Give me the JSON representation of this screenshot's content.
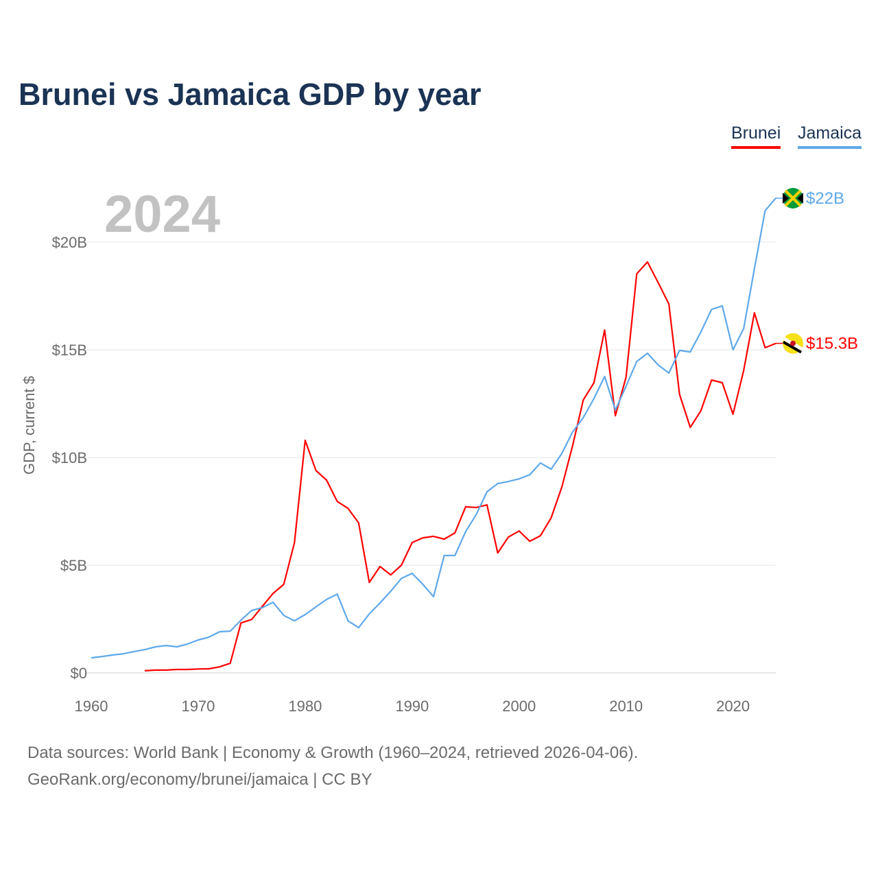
{
  "chart_data": {
    "type": "line",
    "title": "Brunei vs Jamaica GDP by year",
    "ylabel": "GDP, current $",
    "xlabel": "",
    "year_label": "2024",
    "xlim": [
      1960,
      2024
    ],
    "ylim": [
      0,
      20
    ],
    "x_ticks": [
      "1960",
      "1970",
      "1980",
      "1990",
      "2000",
      "2010",
      "2020"
    ],
    "y_ticks": [
      {
        "value": 0,
        "label": "$0"
      },
      {
        "value": 5,
        "label": "$5B"
      },
      {
        "value": 10,
        "label": "$10B"
      },
      {
        "value": 15,
        "label": "$15B"
      },
      {
        "value": 20,
        "label": "$20B"
      }
    ],
    "grid": true,
    "legend_position": "top-right",
    "series": [
      {
        "name": "Brunei",
        "color": "#ff0000",
        "end_label": "$15.3B",
        "flag": "brunei-flag",
        "start_year": 1965,
        "values": [
          0.1,
          0.13,
          0.13,
          0.16,
          0.16,
          0.18,
          0.19,
          0.28,
          0.45,
          2.32,
          2.48,
          3.09,
          3.69,
          4.11,
          6.05,
          10.8,
          9.4,
          8.95,
          7.96,
          7.64,
          6.97,
          4.2,
          4.94,
          4.55,
          5.0,
          6.05,
          6.27,
          6.34,
          6.21,
          6.5,
          7.71,
          7.68,
          7.8,
          5.57,
          6.31,
          6.59,
          6.11,
          6.37,
          7.2,
          8.63,
          10.54,
          12.67,
          13.47,
          15.92,
          11.94,
          13.73,
          18.53,
          19.08,
          18.12,
          17.13,
          12.93,
          11.4,
          12.17,
          13.6,
          13.47,
          12.01,
          14.04,
          16.72,
          15.1,
          15.3
        ]
      },
      {
        "name": "Jamaica",
        "color": "#5ea8ea",
        "end_label": "$22B",
        "flag": "jamaica-flag",
        "start_year": 1960,
        "values": [
          0.7,
          0.76,
          0.83,
          0.89,
          0.99,
          1.08,
          1.21,
          1.27,
          1.21,
          1.34,
          1.53,
          1.66,
          1.91,
          1.94,
          2.45,
          2.9,
          3.03,
          3.28,
          2.67,
          2.42,
          2.71,
          3.06,
          3.41,
          3.66,
          2.42,
          2.1,
          2.74,
          3.25,
          3.79,
          4.39,
          4.62,
          4.11,
          3.54,
          5.45,
          5.45,
          6.56,
          7.36,
          8.41,
          8.79,
          8.89,
          9.01,
          9.2,
          9.75,
          9.46,
          10.19,
          11.18,
          11.85,
          12.74,
          13.76,
          12.2,
          13.31,
          14.46,
          14.84,
          14.3,
          13.92,
          14.97,
          14.9,
          15.83,
          16.88,
          17.04,
          15.0,
          15.99,
          18.76,
          21.46,
          22.04
        ]
      }
    ]
  },
  "footer": {
    "line1": "Data sources: World Bank | Economy & Growth (1960–2024, retrieved 2026-04-06).",
    "line2": "GeoRank.org/economy/brunei/jamaica | CC BY"
  }
}
